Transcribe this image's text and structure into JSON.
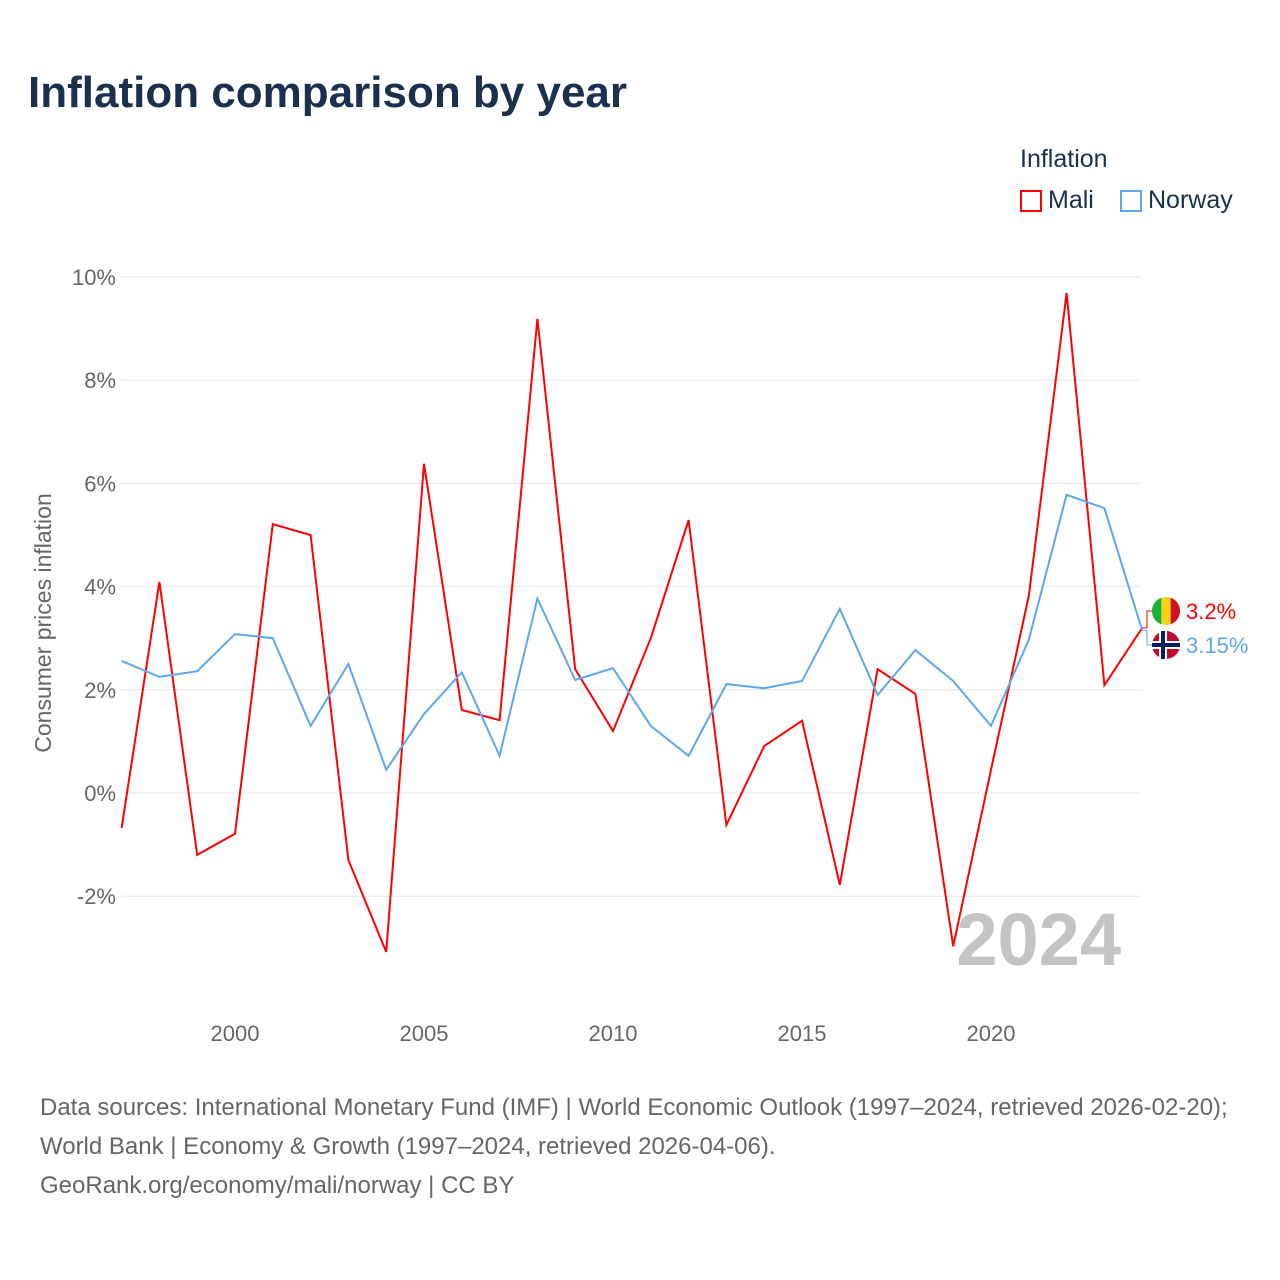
{
  "chart_data": {
    "type": "line",
    "title": "Inflation comparison by year",
    "ylabel": "Consumer prices inflation",
    "xlabel": "",
    "legend_title": "Inflation",
    "legend_position": "top-right",
    "ylim": [
      -4,
      10
    ],
    "xlim": [
      1997,
      2024
    ],
    "yticks": [
      -2,
      0,
      2,
      4,
      6,
      8,
      10
    ],
    "ytick_labels": [
      "-2%",
      "0%",
      "2%",
      "4%",
      "6%",
      "8%",
      "10%"
    ],
    "xticks": [
      2000,
      2005,
      2010,
      2015,
      2020
    ],
    "xtick_labels": [
      "2000",
      "2005",
      "2010",
      "2015",
      "2020"
    ],
    "grid": true,
    "year_watermark": "2024",
    "x": [
      1997,
      1998,
      1999,
      2000,
      2001,
      2002,
      2003,
      2004,
      2005,
      2006,
      2007,
      2008,
      2009,
      2010,
      2011,
      2012,
      2013,
      2014,
      2015,
      2016,
      2017,
      2018,
      2019,
      2020,
      2021,
      2022,
      2023,
      2024
    ],
    "series": [
      {
        "name": "Mali",
        "color": "#ff0000",
        "end_label": "3.2%",
        "values": [
          -0.68,
          4.09,
          -1.2,
          -0.79,
          5.21,
          5.0,
          -1.3,
          -3.08,
          6.38,
          1.61,
          1.41,
          9.19,
          2.4,
          1.2,
          3.0,
          5.29,
          -0.62,
          0.91,
          1.4,
          -1.78,
          2.4,
          1.92,
          -2.97,
          0.45,
          3.82,
          9.69,
          2.09,
          3.2
        ]
      },
      {
        "name": "Norway",
        "color": "#5ca8ee",
        "end_label": "3.15%",
        "values": [
          2.56,
          2.25,
          2.36,
          3.08,
          3.0,
          1.3,
          2.5,
          0.45,
          1.53,
          2.34,
          0.72,
          3.77,
          2.19,
          2.42,
          1.3,
          0.72,
          2.11,
          2.03,
          2.17,
          3.57,
          1.9,
          2.77,
          2.17,
          1.3,
          2.97,
          5.78,
          5.52,
          3.15
        ]
      }
    ]
  },
  "source": "Data sources: International Monetary Fund (IMF) | World Economic Outlook (1997–2024, retrieved 2026-02-20); World Bank | Economy & Growth (1997–2024, retrieved 2026-04-06).",
  "credit": "GeoRank.org/economy/mali/norway | CC BY"
}
